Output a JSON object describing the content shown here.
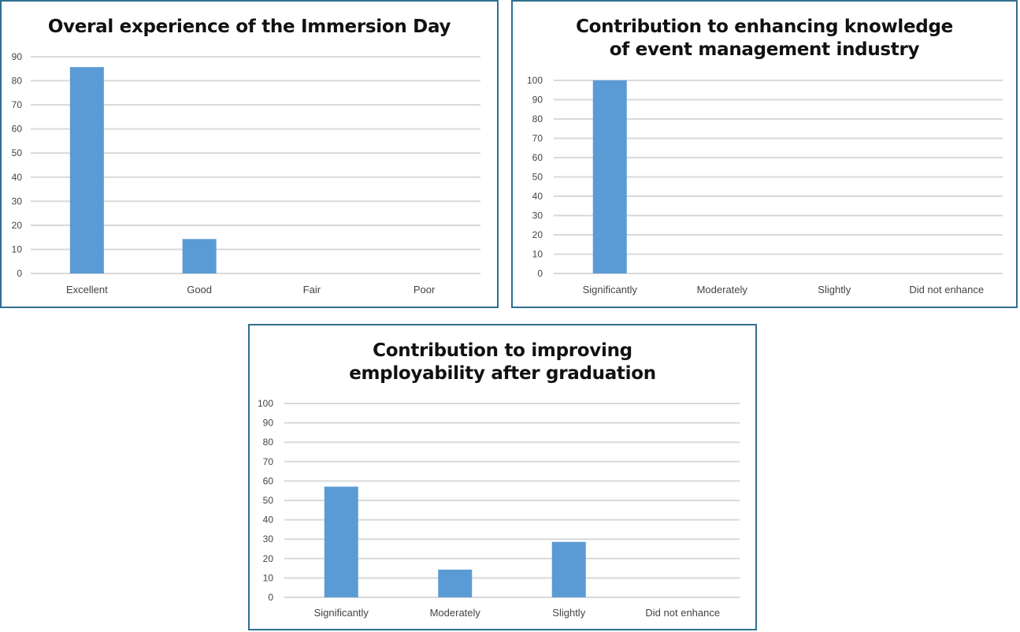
{
  "chart_data": [
    {
      "type": "bar",
      "title": "Overal experience of the Immersion Day",
      "categories": [
        "Excellent",
        "Good",
        "Fair",
        "Poor"
      ],
      "values": [
        85.7,
        14.3,
        0,
        0
      ],
      "yticks": [
        "0",
        "10",
        "20",
        "30",
        "40",
        "50",
        "60",
        "70",
        "80",
        "90"
      ],
      "ylim": [
        0,
        90
      ],
      "xlabel": "",
      "ylabel": "",
      "grid": true,
      "legend": "none",
      "color": "#5b9bd5"
    },
    {
      "type": "bar",
      "title": "Contribution to enhancing knowledge of event management industry",
      "categories": [
        "Significantly",
        "Moderately",
        "Slightly",
        "Did not enhance"
      ],
      "values": [
        100,
        0,
        0,
        0
      ],
      "yticks": [
        "0",
        "10",
        "20",
        "30",
        "40",
        "50",
        "60",
        "70",
        "80",
        "90",
        "100"
      ],
      "ylim": [
        0,
        100
      ],
      "xlabel": "",
      "ylabel": "",
      "grid": true,
      "legend": "none",
      "color": "#5b9bd5"
    },
    {
      "type": "bar",
      "title": "Contribution to improving employability after graduation",
      "categories": [
        "Significantly",
        "Moderately",
        "Slightly",
        "Did not enhance"
      ],
      "values": [
        57.1,
        14.3,
        28.6,
        0
      ],
      "yticks": [
        "0",
        "10",
        "20",
        "30",
        "40",
        "50",
        "60",
        "70",
        "80",
        "90",
        "100"
      ],
      "ylim": [
        0,
        100
      ],
      "xlabel": "",
      "ylabel": "",
      "grid": true,
      "legend": "none",
      "color": "#5b9bd5"
    }
  ]
}
